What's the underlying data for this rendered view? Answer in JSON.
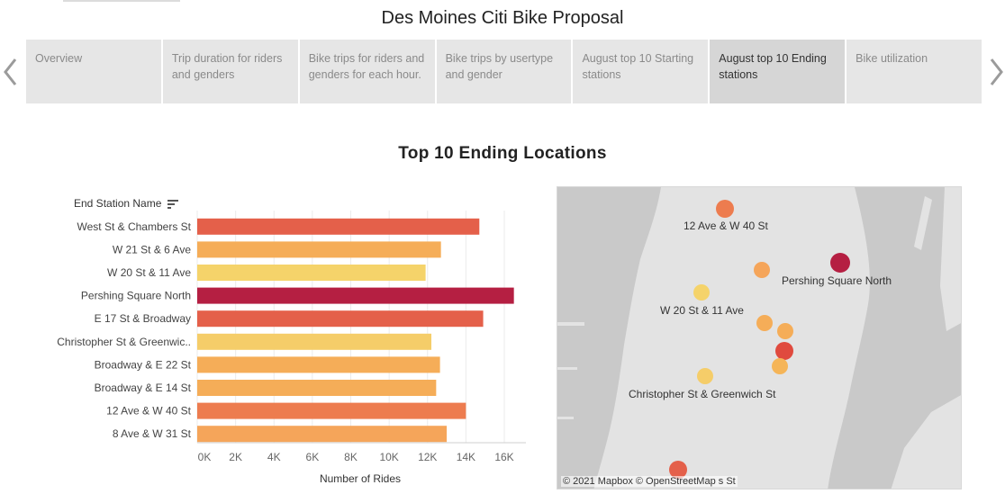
{
  "story": {
    "title": "Des Moines Citi Bike Proposal",
    "tabs": [
      {
        "label": "Overview"
      },
      {
        "label": "Trip duration for riders and genders"
      },
      {
        "label": "Bike trips for riders and genders for each hour."
      },
      {
        "label": "Bike trips by usertype and gender"
      },
      {
        "label": "August top 10 Starting stations"
      },
      {
        "label": "August top 10 Ending stations",
        "active": true
      },
      {
        "label": "Bike utilization"
      }
    ]
  },
  "chart_data": {
    "type": "bar",
    "orientation": "horizontal",
    "title": "Top 10 Ending Locations",
    "category_axis_title": "End Station Name",
    "xlabel": "Number of Rides",
    "xlim": [
      0,
      17000
    ],
    "x_ticks": [
      0,
      2000,
      4000,
      6000,
      8000,
      10000,
      12000,
      14000,
      16000
    ],
    "x_tick_labels": [
      "0K",
      "2K",
      "4K",
      "6K",
      "8K",
      "10K",
      "12K",
      "14K",
      "16K"
    ],
    "grid": "vertical",
    "categories": [
      "West St & Chambers St",
      "W 21 St & 6 Ave",
      "W 20 St & 11 Ave",
      "Pershing Square North",
      "E 17 St & Broadway",
      "Christopher St & Greenwic..",
      "Broadway & E 22 St",
      "Broadway & E 14 St",
      "12 Ave & W 40 St",
      "8 Ave & W 31 St"
    ],
    "values": [
      14700,
      12700,
      11900,
      16500,
      14900,
      12200,
      12650,
      12450,
      14000,
      13000
    ],
    "colors": [
      "#e4604a",
      "#f5ad58",
      "#f5d36a",
      "#b51f42",
      "#e4604a",
      "#f5cd69",
      "#f5ad58",
      "#f5ad58",
      "#ed7c4f",
      "#f5a55a"
    ]
  },
  "map": {
    "labels": [
      "12 Ave & W 40 St",
      "Pershing Square North",
      "W 20 St & 11 Ave",
      "Christopher St & Greenwich St"
    ],
    "attribution": "© 2021 Mapbox © OpenStreetMap",
    "partial_label": "s St"
  }
}
